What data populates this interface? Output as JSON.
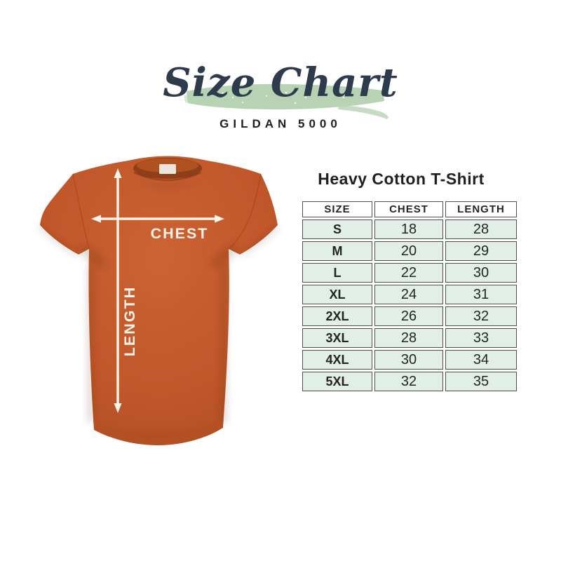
{
  "header": {
    "title": "Size Chart",
    "subtitle": "GILDAN 5000"
  },
  "diagram": {
    "chest_label": "CHEST",
    "length_label": "LENGTH"
  },
  "size_table": {
    "title": "Heavy Cotton T-Shirt",
    "columns": [
      "SIZE",
      "CHEST",
      "LENGTH"
    ],
    "rows": [
      {
        "size": "S",
        "chest": "18",
        "length": "28"
      },
      {
        "size": "M",
        "chest": "20",
        "length": "29"
      },
      {
        "size": "L",
        "chest": "22",
        "length": "30"
      },
      {
        "size": "XL",
        "chest": "24",
        "length": "31"
      },
      {
        "size": "2XL",
        "chest": "26",
        "length": "32"
      },
      {
        "size": "3XL",
        "chest": "28",
        "length": "33"
      },
      {
        "size": "4XL",
        "chest": "30",
        "length": "34"
      },
      {
        "size": "5XL",
        "chest": "32",
        "length": "35"
      }
    ]
  },
  "chart_data": {
    "type": "table",
    "title": "Heavy Cotton T-Shirt",
    "subtitle": "GILDAN 5000",
    "columns": [
      "SIZE",
      "CHEST",
      "LENGTH"
    ],
    "rows": [
      [
        "S",
        18,
        28
      ],
      [
        "M",
        20,
        29
      ],
      [
        "L",
        22,
        30
      ],
      [
        "XL",
        24,
        31
      ],
      [
        "2XL",
        26,
        32
      ],
      [
        "3XL",
        28,
        33
      ],
      [
        "4XL",
        30,
        34
      ],
      [
        "5XL",
        32,
        35
      ]
    ]
  },
  "colors": {
    "navy": "#2d3b4c",
    "ink": "#1f1f1f",
    "brush_green": "#b7d3b3",
    "row_mint": "#e2efe6",
    "table_border": "#4d4d4d",
    "shirt": "#c1572a",
    "shirt_highlight": "#cb6333",
    "shirt_shadow": "#a94b21",
    "collar_inner": "#8c3f18",
    "arrow": "#f8f2e7"
  }
}
